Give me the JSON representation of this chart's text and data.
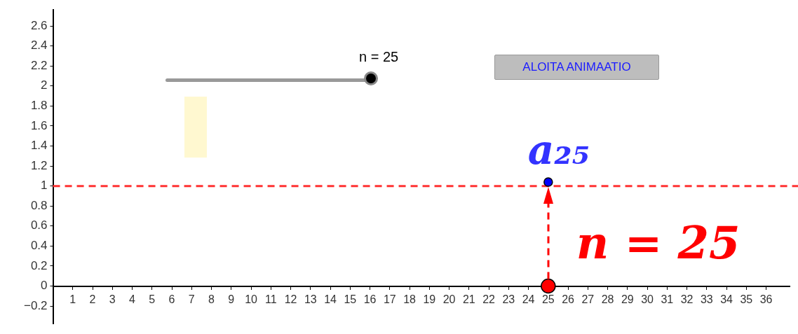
{
  "chart_data": {
    "type": "scatter",
    "xlim": [
      0,
      37.2
    ],
    "ylim": [
      -0.38,
      2.76
    ],
    "xticks": [
      1,
      2,
      3,
      4,
      5,
      6,
      7,
      8,
      9,
      10,
      11,
      12,
      13,
      14,
      15,
      16,
      17,
      18,
      19,
      20,
      21,
      22,
      23,
      24,
      25,
      26,
      27,
      28,
      29,
      30,
      31,
      32,
      33,
      34,
      35,
      36
    ],
    "yticks": [
      {
        "value": -0.2,
        "label": "−0.2"
      },
      0,
      0.2,
      0.4,
      0.6,
      0.8,
      1,
      1.2,
      1.4,
      1.6,
      1.8,
      2,
      2.2,
      2.4,
      2.6
    ],
    "grid": false,
    "legend": false,
    "marker": "circle",
    "series": [
      {
        "color": "#ff0000",
        "x": [
          25
        ],
        "values": [
          0
        ]
      },
      {
        "color": "#0000ff",
        "x": [
          25
        ],
        "values": [
          1.04
        ]
      }
    ],
    "ref_lines": [
      {
        "axis": "y",
        "value": 1,
        "color": "#ff3333",
        "line_style": "dashed"
      }
    ],
    "annotations": [
      {
        "text": "a₂₅",
        "x": 25,
        "y": 1.04
      },
      {
        "text": "n = 25",
        "x": 25,
        "y": 0
      },
      "n = 25",
      "ALOITA ANIMAATIO"
    ]
  }
}
